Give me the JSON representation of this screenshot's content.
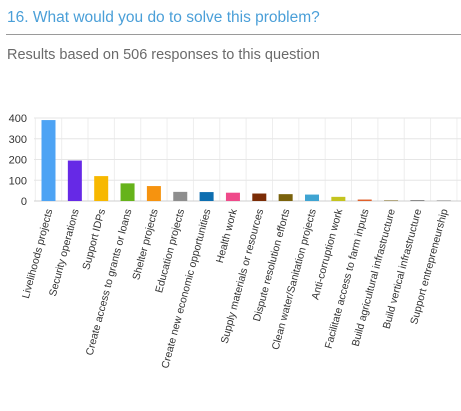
{
  "header": {
    "question": "16. What would you do to solve this problem?",
    "subtitle": "Results based on 506 responses to this question"
  },
  "chart_data": {
    "type": "bar",
    "title": "16. What would you do to solve this problem?",
    "subtitle": "Results based on 506 responses to this question",
    "xlabel": "",
    "ylabel": "",
    "ylim": [
      0,
      400
    ],
    "yticks": [
      0,
      100,
      200,
      300,
      400
    ],
    "grid": true,
    "legend": "none",
    "categories": [
      "Livelihoods projects",
      "Security operations",
      "Support IDPs",
      "Create access to grants or loans",
      "Shelter projects",
      "Education projects",
      "Create new economic opportunities",
      "Health work",
      "Supply materials or resources",
      "Dispute resolution efforts",
      "Clean water/Sanitation projects",
      "Anti-corruption work",
      "Facilitate access to farm inputs",
      "Build agricultural infrastructure",
      "Build vertical infrastructure",
      "Support entrepreneurship"
    ],
    "values": [
      390,
      195,
      120,
      85,
      72,
      44,
      43,
      40,
      36,
      33,
      31,
      20,
      7,
      4,
      2,
      1
    ],
    "colors": [
      "#4da3f4",
      "#6629e6",
      "#f7b800",
      "#66b31a",
      "#f6930f",
      "#8e8e8e",
      "#0d6eb0",
      "#ef4a8a",
      "#7b2c06",
      "#7a620c",
      "#3fa4d2",
      "#c4c41f",
      "#e0602a",
      "#b4a982",
      "#8c8c8c",
      "#bcbcbc"
    ]
  }
}
